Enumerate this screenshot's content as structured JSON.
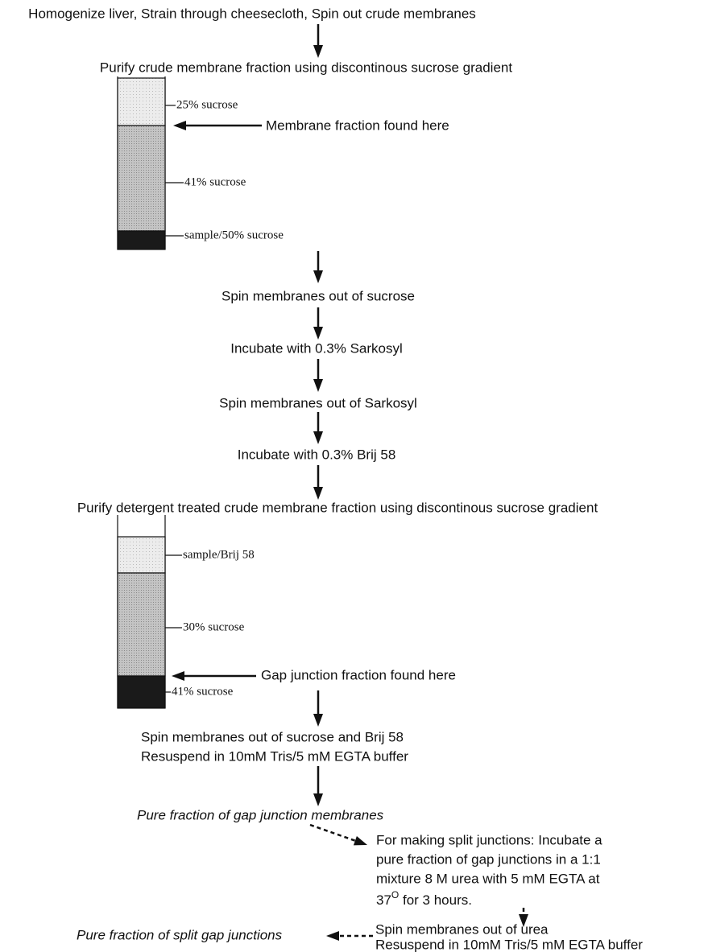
{
  "steps": [
    "Homogenize liver, Strain through cheesecloth, Spin out crude membranes",
    "Purify crude membrane fraction using discontinous sucrose gradient",
    "Spin membranes out of sucrose",
    "Incubate with 0.3% Sarkosyl",
    "Spin membranes out of Sarkosyl",
    "Incubate with 0.3% Brij 58",
    "Purify  detergent treated crude membrane fraction using discontinous sucrose gradient"
  ],
  "gradient1": {
    "layers": [
      "25% sucrose",
      "41% sucrose",
      "sample/50% sucrose"
    ],
    "pointer": "Membrane fraction found here"
  },
  "gradient2": {
    "layers": [
      "sample/Brij 58",
      "30% sucrose",
      "41% sucrose"
    ],
    "pointer": "Gap junction fraction found here"
  },
  "final_step": [
    "Spin membranes out of sucrose and Brij 58",
    "Resuspend in 10mM Tris/5 mM EGTA buffer"
  ],
  "pure_gap": "Pure fraction of gap junction membranes",
  "split": {
    "lines": [
      "For making split junctions: Incubate a",
      "pure fraction of gap junctions in a 1:1",
      "mixture 8 M urea with 5 mM EGTA at"
    ],
    "temp": "37",
    "degree": "O",
    "time": " for 3 hours."
  },
  "split_spin": [
    "Spin membranes out of urea",
    "Resuspend in 10mM Tris/5 mM EGTA buffer"
  ],
  "pure_split": "Pure fraction of split gap junctions"
}
